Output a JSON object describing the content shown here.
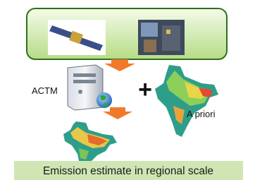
{
  "labels": {
    "model": "ACTM",
    "plus": "+",
    "prior": "A priori"
  },
  "caption": "Emission estimate in regional scale"
}
